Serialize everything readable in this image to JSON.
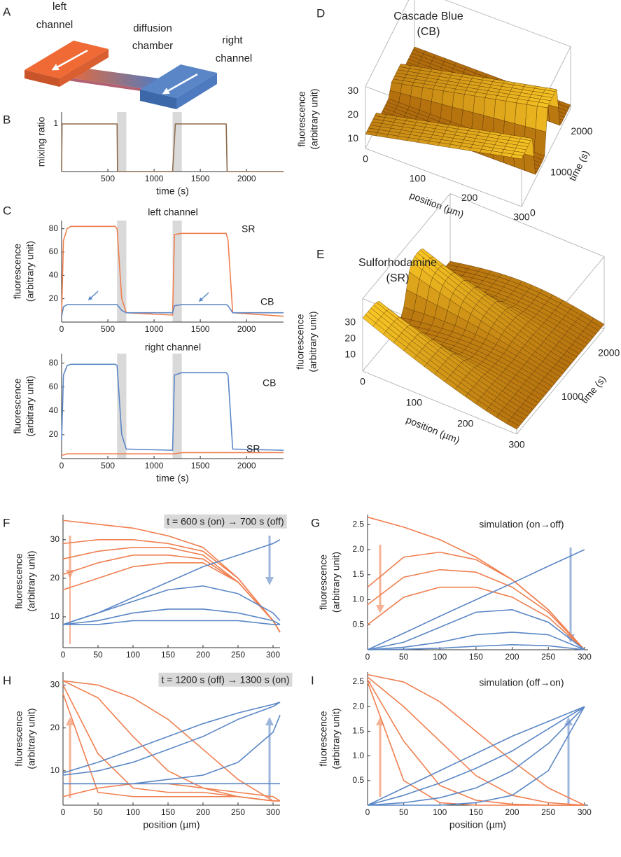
{
  "panel_labels": [
    "A",
    "B",
    "C",
    "D",
    "E",
    "F",
    "G",
    "H",
    "I"
  ],
  "diagram": {
    "left_channel": [
      "left",
      "channel"
    ],
    "chamber": [
      "diffusion",
      "chamber"
    ],
    "right_channel": [
      "right",
      "channel"
    ]
  },
  "surfaces": [
    {
      "title": [
        "Cascade Blue",
        "(CB)"
      ],
      "color": "#5b87c6",
      "zlabel": [
        "fluorescence",
        "(arbitrary unit)"
      ],
      "xlabel": "position (µm)",
      "tlabel": "time (s)",
      "xlim": [
        0,
        300
      ],
      "tlim": [
        0,
        2400
      ],
      "zlim": [
        6,
        32
      ],
      "xticks": [
        0,
        100,
        200,
        300
      ],
      "tticks": [
        0,
        1000,
        2000
      ],
      "zticks": [
        10,
        20,
        30
      ]
    },
    {
      "title": [
        "Sulforhodamine",
        "(SR)"
      ],
      "color": "#f07f4f",
      "zlabel": [
        "fluorescence",
        "(arbitrary unit)"
      ],
      "xlabel": "position (µm)",
      "tlabel": "time (s)",
      "xlim": [
        0,
        300
      ],
      "tlim": [
        0,
        2400
      ],
      "zlim": [
        0,
        45
      ],
      "xticks": [
        0,
        100,
        200,
        300
      ],
      "tticks": [
        1000,
        2000
      ],
      "zticks": [
        10,
        20,
        30
      ]
    }
  ],
  "chart_data": [
    {
      "type": "line",
      "ylabel": "mixing ratio",
      "xlabel": "time (s)",
      "x": [
        0,
        5,
        600,
        605,
        1200,
        1230,
        1780,
        1790,
        2400
      ],
      "xlim": [
        0,
        2400
      ],
      "xticks": [
        500,
        1000,
        1500,
        2000
      ],
      "ylim": [
        0,
        1.25
      ],
      "yticks": [
        1
      ],
      "shaded": [
        [
          600,
          700
        ],
        [
          1200,
          1300
        ]
      ],
      "series": [
        {
          "color": "#8e6a4b",
          "values": [
            0,
            1,
            1,
            0,
            0,
            1,
            1,
            0,
            0
          ]
        }
      ]
    },
    {
      "type": "line",
      "title": "left channel",
      "ylabel": [
        "fluorescence",
        "(arbitrary unit)"
      ],
      "x": [
        0,
        20,
        60,
        100,
        580,
        600,
        650,
        700,
        1200,
        1220,
        1300,
        1780,
        1800,
        1850,
        2400
      ],
      "xlim": [
        0,
        2400
      ],
      "xticks": [
        0,
        500,
        1000,
        1500,
        2000
      ],
      "ylim": [
        0,
        87
      ],
      "yticks": [
        20,
        40,
        60,
        80
      ],
      "shaded": [
        [
          600,
          700
        ],
        [
          1200,
          1300
        ]
      ],
      "series": [
        {
          "name": "SR",
          "color": "#f07f4f",
          "values": [
            5,
            70,
            80,
            82,
            82,
            80,
            20,
            8,
            6,
            75,
            76,
            76,
            70,
            8,
            5
          ]
        },
        {
          "name": "CB",
          "color": "#5b87c6",
          "values": [
            5,
            13,
            15,
            15,
            15,
            15,
            10,
            8,
            8,
            14,
            15,
            15,
            14,
            8,
            8
          ]
        }
      ]
    },
    {
      "type": "line",
      "title": "right channel",
      "ylabel": [
        "fluorescence",
        "(arbitrary unit)"
      ],
      "xlabel": "time (s)",
      "x": [
        0,
        20,
        60,
        100,
        580,
        600,
        650,
        700,
        1200,
        1220,
        1300,
        1780,
        1800,
        1850,
        2400
      ],
      "xlim": [
        0,
        2400
      ],
      "xticks": [
        0,
        500,
        1000,
        1500,
        2000
      ],
      "ylim": [
        0,
        88
      ],
      "yticks": [
        20,
        40,
        60,
        80
      ],
      "shaded": [
        [
          600,
          700
        ],
        [
          1200,
          1300
        ]
      ],
      "series": [
        {
          "name": "CB",
          "color": "#5b87c6",
          "values": [
            15,
            70,
            78,
            79,
            79,
            78,
            20,
            8,
            7,
            70,
            72,
            72,
            70,
            8,
            7
          ]
        },
        {
          "name": "SR",
          "color": "#f07f4f",
          "values": [
            3,
            3,
            4,
            4,
            4,
            4,
            4,
            4,
            4,
            4,
            5,
            5,
            5,
            5,
            5
          ]
        }
      ]
    },
    {
      "type": "line",
      "annotation": "t = 600 s (on) → 700 s (off)",
      "ylabel": [
        "fluorescence",
        "(arbitrary unit)"
      ],
      "x": [
        0,
        50,
        100,
        150,
        200,
        250,
        300,
        310
      ],
      "xlim": [
        0,
        310
      ],
      "xticks": [
        0,
        50,
        100,
        150,
        200,
        250,
        300
      ],
      "ylim": [
        2,
        36.5
      ],
      "yticks": [
        10,
        20,
        30
      ],
      "series": [
        {
          "color": "#f07f4f",
          "values": [
            35,
            34,
            33,
            31,
            28,
            20,
            9,
            6
          ]
        },
        {
          "color": "#f07f4f",
          "values": [
            29,
            30,
            30,
            29,
            27,
            20,
            9,
            6
          ]
        },
        {
          "color": "#f07f4f",
          "values": [
            25,
            27,
            28,
            28,
            26,
            19,
            9,
            6
          ]
        },
        {
          "color": "#f07f4f",
          "values": [
            21,
            24,
            26,
            26,
            25,
            19,
            9,
            6
          ]
        },
        {
          "color": "#f07f4f",
          "values": [
            17,
            20,
            23,
            24,
            24,
            19,
            9,
            6
          ]
        },
        {
          "color": "#5b87c6",
          "values": [
            8,
            11,
            15,
            19,
            23,
            26,
            29,
            30
          ]
        },
        {
          "color": "#5b87c6",
          "values": [
            8,
            11,
            14,
            17,
            18,
            16,
            11,
            9
          ]
        },
        {
          "color": "#5b87c6",
          "values": [
            8,
            9,
            11,
            12,
            12,
            11,
            9,
            8
          ]
        },
        {
          "color": "#5b87c6",
          "values": [
            8,
            8,
            9,
            9,
            9,
            9,
            8,
            8
          ]
        }
      ]
    },
    {
      "type": "line",
      "annotation": "simulation (on→off)",
      "ylabel": [
        "fluorescence",
        "(arbitrary unit)"
      ],
      "x": [
        0,
        50,
        100,
        150,
        200,
        250,
        300
      ],
      "xlim": [
        0,
        305
      ],
      "xticks": [
        0,
        50,
        100,
        150,
        200,
        250,
        300
      ],
      "ylim": [
        0,
        2.7
      ],
      "yticks": [
        0.5,
        {
          "value": 1,
          "label": "1.0"
        },
        1.5,
        {
          "value": 2,
          "label": "2.0"
        },
        2.5
      ],
      "series": [
        {
          "color": "#f07f4f",
          "values": [
            2.65,
            2.45,
            2.2,
            1.85,
            1.4,
            0.8,
            0
          ]
        },
        {
          "color": "#f07f4f",
          "values": [
            1.25,
            1.85,
            1.95,
            1.8,
            1.4,
            0.8,
            0
          ]
        },
        {
          "color": "#f07f4f",
          "values": [
            0.9,
            1.45,
            1.6,
            1.55,
            1.25,
            0.75,
            0
          ]
        },
        {
          "color": "#f07f4f",
          "values": [
            0.5,
            1.05,
            1.25,
            1.25,
            1.05,
            0.65,
            0
          ]
        },
        {
          "color": "#5b87c6",
          "values": [
            0,
            0.33,
            0.67,
            1,
            1.33,
            1.67,
            2
          ]
        },
        {
          "color": "#5b87c6",
          "values": [
            0,
            0.15,
            0.45,
            0.75,
            0.8,
            0.55,
            0
          ]
        },
        {
          "color": "#5b87c6",
          "values": [
            0,
            0.05,
            0.15,
            0.3,
            0.35,
            0.3,
            0
          ]
        },
        {
          "color": "#5b87c6",
          "values": [
            0,
            0.01,
            0.03,
            0.07,
            0.1,
            0.08,
            0
          ]
        }
      ]
    },
    {
      "type": "line",
      "annotation": "t = 1200 s (off) → 1300 s (on)",
      "ylabel": [
        "fluorescence",
        "(arbitrary unit)"
      ],
      "xlabel": "position (µm)",
      "x": [
        0,
        50,
        100,
        150,
        200,
        250,
        300,
        310
      ],
      "xlim": [
        0,
        310
      ],
      "xticks": [
        0,
        50,
        100,
        150,
        200,
        250,
        300
      ],
      "ylim": [
        2,
        33
      ],
      "yticks": [
        10,
        20,
        30
      ],
      "series": [
        {
          "color": "#f07f4f",
          "values": [
            31,
            30,
            27,
            22,
            15,
            8,
            3,
            3
          ]
        },
        {
          "color": "#f07f4f",
          "values": [
            31,
            27,
            18,
            10,
            6,
            4,
            3,
            3
          ]
        },
        {
          "color": "#f07f4f",
          "values": [
            30,
            14,
            6,
            5,
            5,
            4,
            3,
            3
          ]
        },
        {
          "color": "#f07f4f",
          "values": [
            28,
            5,
            4,
            4,
            4,
            4,
            3,
            3
          ]
        },
        {
          "color": "#f07f4f",
          "values": [
            4,
            6,
            7,
            7,
            6,
            5,
            4,
            3
          ]
        },
        {
          "color": "#5b87c6",
          "values": [
            9.5,
            12,
            15,
            18,
            21,
            23.5,
            25.5,
            26
          ]
        },
        {
          "color": "#5b87c6",
          "values": [
            9,
            10,
            12,
            15,
            18,
            22,
            25,
            26
          ]
        },
        {
          "color": "#5b87c6",
          "values": [
            7,
            7,
            7,
            8,
            9,
            12,
            19,
            23
          ]
        },
        {
          "color": "#5b87c6",
          "values": [
            7,
            7,
            7,
            7,
            7,
            7,
            7,
            7
          ]
        }
      ]
    },
    {
      "type": "line",
      "annotation": "simulation (off→on)",
      "ylabel": [
        "fluorescence",
        "(arbitrary unit)"
      ],
      "xlabel": "position (µm)",
      "x": [
        0,
        50,
        100,
        150,
        200,
        250,
        300
      ],
      "xlim": [
        0,
        305
      ],
      "xticks": [
        0,
        50,
        100,
        150,
        200,
        250,
        300
      ],
      "ylim": [
        0,
        2.7
      ],
      "yticks": [
        0.5,
        {
          "value": 1,
          "label": "1.0"
        },
        1.5,
        {
          "value": 2,
          "label": "2.0"
        },
        2.5
      ],
      "series": [
        {
          "color": "#f07f4f",
          "values": [
            2.65,
            2.5,
            2.1,
            1.5,
            0.9,
            0.35,
            0
          ]
        },
        {
          "color": "#f07f4f",
          "values": [
            2.6,
            2.0,
            1.3,
            0.6,
            0.2,
            0.05,
            0
          ]
        },
        {
          "color": "#f07f4f",
          "values": [
            2.55,
            1.3,
            0.4,
            0.1,
            0.02,
            0,
            0
          ]
        },
        {
          "color": "#f07f4f",
          "values": [
            2.5,
            0.5,
            0.05,
            0,
            0,
            0,
            0
          ]
        },
        {
          "color": "#5b87c6",
          "values": [
            0,
            0.35,
            0.7,
            1.05,
            1.4,
            1.7,
            2
          ]
        },
        {
          "color": "#5b87c6",
          "values": [
            0,
            0.2,
            0.45,
            0.75,
            1.1,
            1.55,
            2
          ]
        },
        {
          "color": "#5b87c6",
          "values": [
            0,
            0.05,
            0.15,
            0.35,
            0.7,
            1.25,
            2
          ]
        },
        {
          "color": "#5b87c6",
          "values": [
            0,
            0,
            0,
            0.05,
            0.2,
            0.7,
            2
          ]
        }
      ]
    }
  ]
}
